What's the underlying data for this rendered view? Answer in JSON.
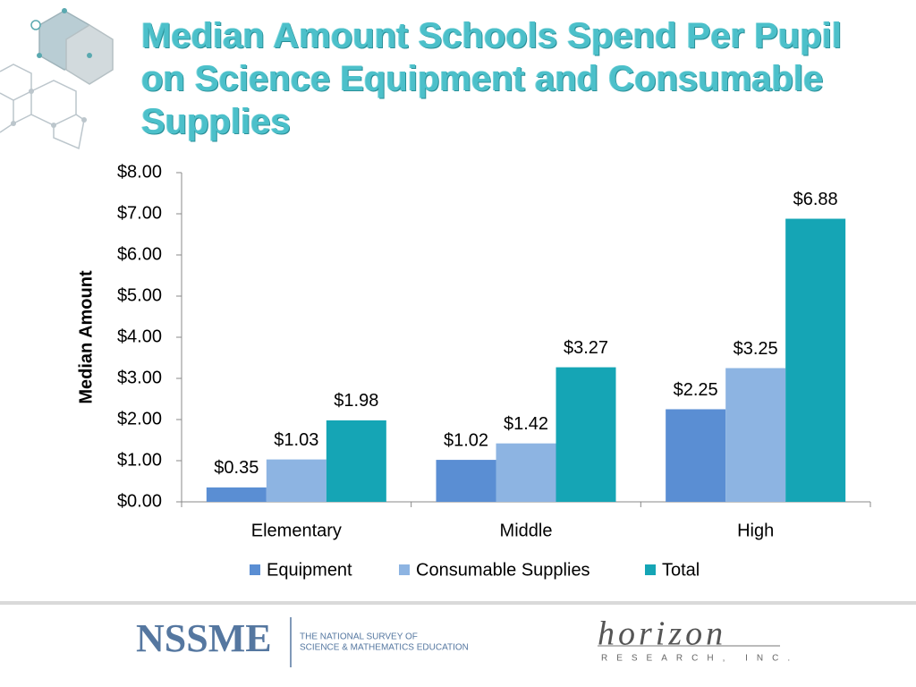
{
  "chart_data": {
    "type": "bar",
    "title": "Median Amount Schools Spend Per Pupil on Science Equipment and Consumable Supplies",
    "y_label": "Median Amount",
    "categories": [
      "Elementary",
      "Middle",
      "High"
    ],
    "series": [
      {
        "name": "Equipment",
        "color": "#5a8ed3",
        "values": [
          0.35,
          1.02,
          2.25
        ],
        "value_labels": [
          "$0.35",
          "$1.02",
          "$2.25"
        ]
      },
      {
        "name": "Consumable Supplies",
        "color": "#8db4e2",
        "values": [
          1.03,
          1.42,
          3.25
        ],
        "value_labels": [
          "$1.03",
          "$1.42",
          "$3.25"
        ]
      },
      {
        "name": "Total",
        "color": "#15a5b5",
        "values": [
          1.98,
          3.27,
          6.88
        ],
        "value_labels": [
          "$1.98",
          "$3.27",
          "$6.88"
        ]
      }
    ],
    "ylim": [
      0,
      8
    ],
    "yticks": [
      {
        "value": 0,
        "label": "$0.00"
      },
      {
        "value": 1,
        "label": "$1.00"
      },
      {
        "value": 2,
        "label": "$2.00"
      },
      {
        "value": 3,
        "label": "$3.00"
      },
      {
        "value": 4,
        "label": "$4.00"
      },
      {
        "value": 5,
        "label": "$5.00"
      },
      {
        "value": 6,
        "label": "$6.00"
      },
      {
        "value": 7,
        "label": "$7.00"
      },
      {
        "value": 8,
        "label": "$8.00"
      }
    ],
    "legend": "bottom"
  },
  "footer": {
    "logo": "NSSME",
    "survey_line_1": "THE NATIONAL SURVEY OF",
    "survey_line_2": "SCIENCE & MATHEMATICS EDUCATION",
    "partner": "horizon",
    "partner_sub": "RESEARCH, INC."
  }
}
